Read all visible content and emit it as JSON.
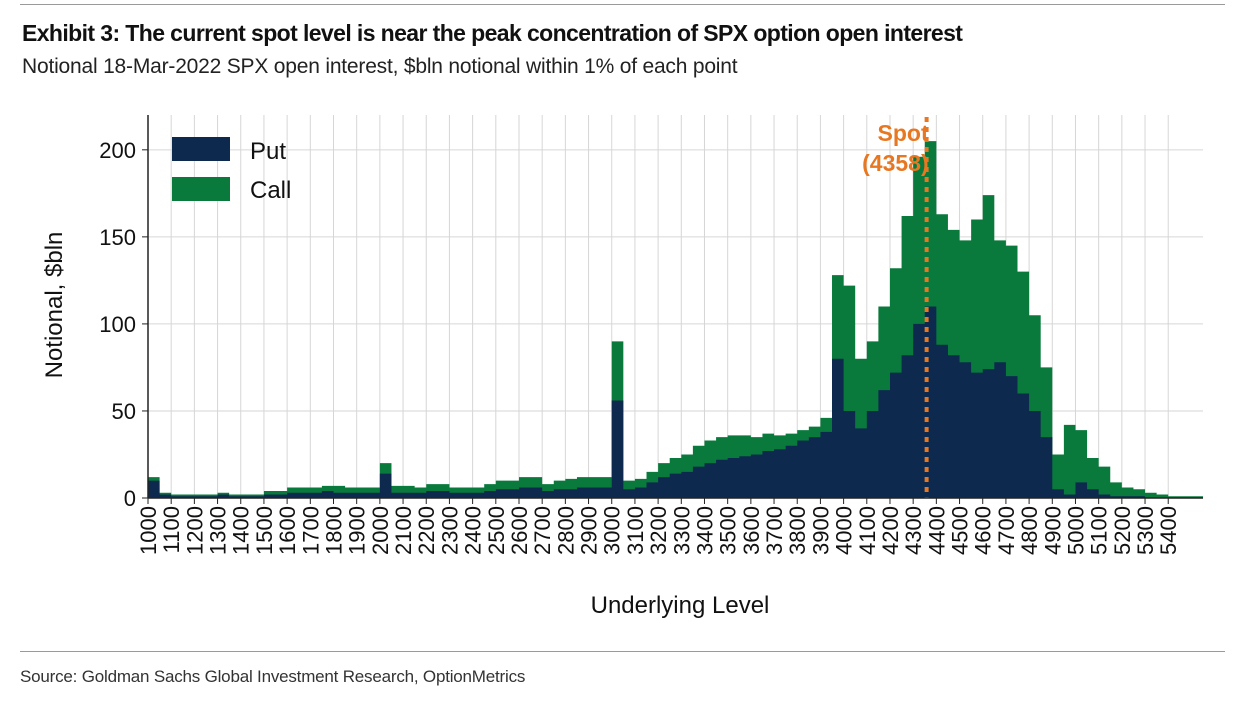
{
  "header": {
    "title": "Exhibit 3: The current spot level is near the peak concentration of SPX option open interest",
    "subtitle": "Notional 18-Mar-2022 SPX open interest, $bln notional within 1% of each point"
  },
  "footer": {
    "source": "Source: Goldman Sachs Global Investment Research, OptionMetrics"
  },
  "colors": {
    "put": "#0d2a4e",
    "call": "#0a7a3c",
    "spot": "#e87722",
    "grid": "#d6d6d6",
    "axis": "#222222"
  },
  "chart_data": {
    "type": "area",
    "stacked": true,
    "title": "Exhibit 3: The current spot level is near the peak concentration of SPX option open interest",
    "xlabel": "Underlying Level",
    "ylabel": "Notional, $bln",
    "xlim": [
      1000,
      5550
    ],
    "ylim": [
      0,
      220
    ],
    "yticks": [
      0,
      50,
      100,
      150,
      200
    ],
    "xticks": [
      1000,
      1100,
      1200,
      1300,
      1400,
      1500,
      1600,
      1700,
      1800,
      1900,
      2000,
      2100,
      2200,
      2300,
      2400,
      2500,
      2600,
      2700,
      2800,
      2900,
      3000,
      3100,
      3200,
      3300,
      3400,
      3500,
      3600,
      3700,
      3800,
      3900,
      4000,
      4100,
      4200,
      4300,
      4400,
      4500,
      4600,
      4700,
      4800,
      4900,
      5000,
      5100,
      5200,
      5300,
      5400
    ],
    "legend": [
      "Put",
      "Call"
    ],
    "legend_position": "top-left",
    "grid": true,
    "annotation": {
      "label": "Spot",
      "value_label": "(4358)",
      "x": 4358
    },
    "x": [
      1000,
      1050,
      1100,
      1150,
      1200,
      1250,
      1300,
      1350,
      1400,
      1450,
      1500,
      1550,
      1600,
      1650,
      1700,
      1750,
      1800,
      1850,
      1900,
      1950,
      2000,
      2050,
      2100,
      2150,
      2200,
      2250,
      2300,
      2350,
      2400,
      2450,
      2500,
      2550,
      2600,
      2650,
      2700,
      2750,
      2800,
      2850,
      2900,
      2950,
      3000,
      3050,
      3100,
      3150,
      3200,
      3250,
      3300,
      3350,
      3400,
      3450,
      3500,
      3550,
      3600,
      3650,
      3700,
      3750,
      3800,
      3850,
      3900,
      3950,
      4000,
      4050,
      4100,
      4150,
      4200,
      4250,
      4300,
      4350,
      4400,
      4450,
      4500,
      4550,
      4600,
      4650,
      4700,
      4750,
      4800,
      4850,
      4900,
      4950,
      5000,
      5050,
      5100,
      5150,
      5200,
      5250,
      5300,
      5350,
      5400,
      5450,
      5500
    ],
    "series": [
      {
        "name": "Put",
        "values": [
          10,
          2,
          1,
          1,
          1,
          1,
          2,
          1,
          1,
          1,
          2,
          2,
          3,
          3,
          3,
          4,
          3,
          3,
          3,
          3,
          14,
          3,
          3,
          3,
          4,
          4,
          3,
          3,
          3,
          4,
          5,
          5,
          6,
          6,
          4,
          5,
          5,
          6,
          6,
          6,
          56,
          5,
          6,
          9,
          12,
          14,
          15,
          18,
          20,
          22,
          23,
          24,
          25,
          27,
          28,
          30,
          33,
          35,
          38,
          80,
          50,
          40,
          50,
          62,
          72,
          82,
          100,
          110,
          88,
          82,
          78,
          72,
          74,
          78,
          70,
          60,
          50,
          35,
          5,
          2,
          9,
          5,
          2,
          1,
          1,
          1,
          0,
          0,
          0,
          0,
          0
        ]
      },
      {
        "name": "Call",
        "values": [
          2,
          1,
          1,
          1,
          1,
          1,
          1,
          1,
          1,
          1,
          2,
          2,
          3,
          3,
          3,
          3,
          4,
          3,
          3,
          3,
          6,
          4,
          4,
          3,
          4,
          4,
          3,
          3,
          3,
          4,
          5,
          5,
          6,
          6,
          4,
          5,
          6,
          6,
          6,
          6,
          34,
          5,
          5,
          6,
          8,
          9,
          10,
          12,
          13,
          13,
          13,
          12,
          10,
          10,
          8,
          7,
          6,
          6,
          8,
          48,
          72,
          40,
          40,
          48,
          60,
          80,
          96,
          95,
          75,
          72,
          70,
          88,
          100,
          70,
          75,
          70,
          55,
          40,
          20,
          40,
          30,
          18,
          16,
          8,
          5,
          4,
          3,
          2,
          1,
          1,
          1
        ]
      }
    ]
  }
}
